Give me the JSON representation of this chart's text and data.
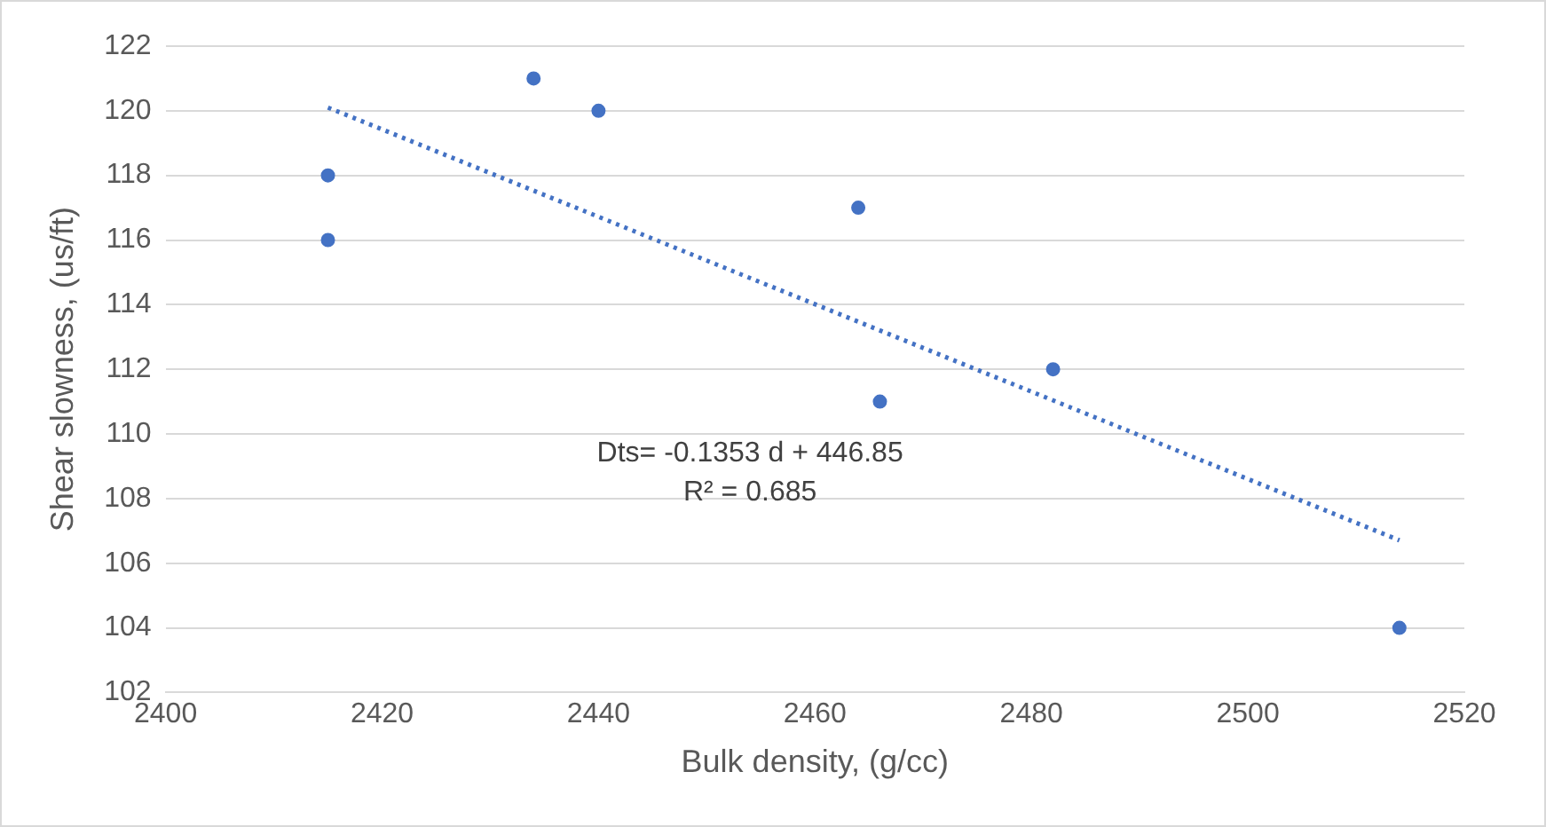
{
  "chart_data": {
    "type": "scatter",
    "xlabel": "Bulk density, (g/cc)",
    "ylabel": "Shear slowness, (us/ft)",
    "xlim": [
      2400,
      2520
    ],
    "xticks": [
      2400,
      2420,
      2440,
      2460,
      2480,
      2500,
      2520
    ],
    "ylim": [
      102,
      122
    ],
    "yticks": [
      102,
      104,
      106,
      108,
      110,
      112,
      114,
      116,
      118,
      120,
      122
    ],
    "grid": "y",
    "legend": false,
    "marker": "circle",
    "series": [
      {
        "color": "#4472c4",
        "x": [
          2415,
          2415,
          2434,
          2440,
          2464,
          2466,
          2482,
          2514
        ],
        "values": [
          118,
          116,
          121,
          120,
          117,
          111,
          112,
          104
        ]
      },
      {
        "type": "line",
        "color": "#4472c4",
        "line_style": "dotted",
        "marker": "none",
        "x": [
          2415,
          2514
        ],
        "values": [
          120.1,
          106.71
        ]
      }
    ],
    "annotations": [
      "Dts= -0.1353 d + 446.85",
      "R² = 0.685"
    ]
  }
}
